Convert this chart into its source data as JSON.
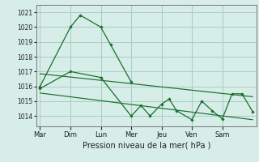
{
  "xlabel": "Pression niveau de la mer( hPa )",
  "ylim": [
    1013.3,
    1021.5
  ],
  "yticks": [
    1014,
    1015,
    1016,
    1017,
    1018,
    1019,
    1020,
    1021
  ],
  "day_labels": [
    "Mar",
    "Dim",
    "Lun",
    "Mer",
    "Jeu",
    "Ven",
    "Sam"
  ],
  "day_positions": [
    0,
    40,
    80,
    120,
    160,
    200,
    240
  ],
  "xlim": [
    -5,
    285
  ],
  "background_color": "#d6ede8",
  "grid_color": "#aaccc4",
  "line_color": "#1a6e2e",
  "series1_x": [
    0,
    40,
    53,
    80,
    93,
    120
  ],
  "series1_y": [
    1016.0,
    1020.0,
    1020.8,
    1020.0,
    1018.8,
    1016.3
  ],
  "series2_x": [
    0,
    40,
    80,
    120,
    133,
    145,
    160,
    170,
    180,
    200,
    213,
    227,
    240,
    253,
    266,
    280
  ],
  "series2_y": [
    1015.85,
    1017.0,
    1016.6,
    1014.0,
    1014.7,
    1014.0,
    1014.8,
    1015.15,
    1014.35,
    1013.75,
    1015.0,
    1014.35,
    1013.8,
    1015.5,
    1015.5,
    1014.3
  ],
  "trend1_x": [
    0,
    280
  ],
  "trend1_y": [
    1016.85,
    1015.3
  ],
  "trend2_x": [
    0,
    280
  ],
  "trend2_y": [
    1015.55,
    1013.75
  ]
}
